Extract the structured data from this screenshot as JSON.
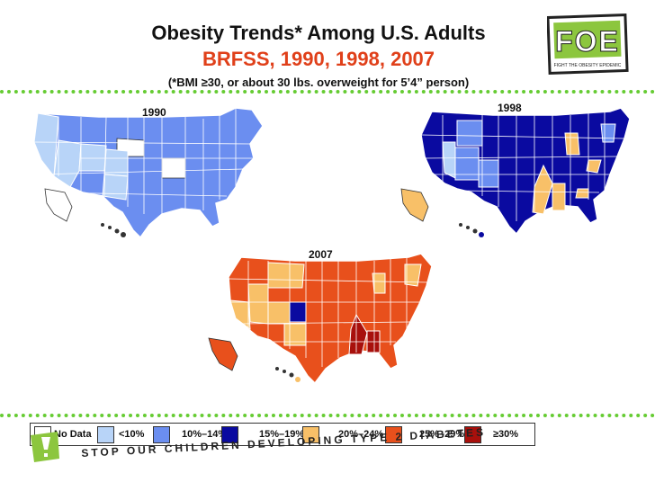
{
  "title": {
    "line1": "Obesity Trends* Among U.S. Adults",
    "line2": "BRFSS, 1990, 1998, 2007",
    "line3": "(*BMI ≥30, or about 30 lbs. overweight for 5’4” person)"
  },
  "logo": {
    "text": "FOE",
    "tagline": "FIGHT THE OBESITY EPIDEMIC"
  },
  "maps": [
    {
      "year": "1990",
      "dominant": "10%–14%",
      "fill": "#6b8ef0"
    },
    {
      "year": "1998",
      "dominant": "15%–19%",
      "fill": "#0a0aa0"
    },
    {
      "year": "2007",
      "dominant": "25%–29%",
      "fill": "#e8501c"
    }
  ],
  "legend": [
    {
      "label": "No Data",
      "color": "#ffffff"
    },
    {
      "label": "<10%",
      "color": "#b8d4f8"
    },
    {
      "label": "10%–14%",
      "color": "#6b8ef0"
    },
    {
      "label": "15%–19%",
      "color": "#0a0aa0"
    },
    {
      "label": "20%–24%",
      "color": "#f8c068"
    },
    {
      "label": "25%–29%",
      "color": "#e8501c"
    },
    {
      "label": "≥30%",
      "color": "#a8100c"
    }
  ],
  "slogan": "STOP OUR CHILDREN DEVELOPING TYPE 2 DIABETES"
}
